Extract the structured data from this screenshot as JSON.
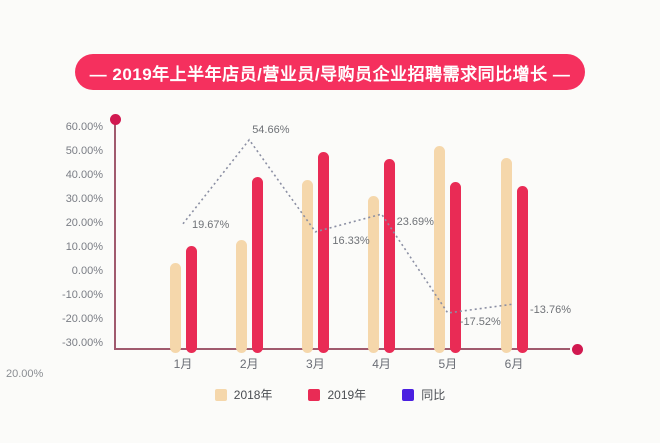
{
  "title": "— 2019年上半年店员/营业员/导购员企业招聘需求同比增长 —",
  "colors": {
    "title_bg": "#f5305e",
    "bar_2018": "#f5d7ab",
    "bar_2019": "#e92b55",
    "yoy_legend": "#4a1fe0",
    "yoy_line": "#8b8fa3",
    "axis_line": "#a05a6e",
    "axis_dot": "#d11950"
  },
  "stray_label": "20.00%",
  "chart_data": {
    "type": "bar",
    "categories": [
      "1月",
      "2月",
      "3月",
      "4月",
      "5月",
      "6月"
    ],
    "y_axis": {
      "ticks": [
        "60.00%",
        "50.00%",
        "40.00%",
        "30.00%",
        "20.00%",
        "10.00%",
        "0.00%",
        "-10.00%",
        "-20.00%",
        "-30.00%"
      ],
      "min": -30,
      "max": 60,
      "grid": false
    },
    "series": [
      {
        "name": "2018年",
        "type": "bar",
        "color": "#f5d7ab",
        "values": [
          3.5,
          13.0,
          37.8,
          31.1,
          52.1,
          47.1
        ],
        "baseline": -30,
        "note": "unlabeled bars; values are tops read on the percent axis, bars drawn up from the x-axis baseline at -30%"
      },
      {
        "name": "2019年",
        "type": "bar",
        "color": "#e92b55",
        "values": [
          10.5,
          39.1,
          49.6,
          46.7,
          37.0,
          35.3
        ],
        "baseline": -30,
        "note": "unlabeled bars; values are tops read on the percent axis, bars drawn up from the x-axis baseline at -30%"
      },
      {
        "name": "同比",
        "type": "line",
        "line_style": "dotted",
        "color": "#8b8fa3",
        "legend_color": "#4a1fe0",
        "values": [
          19.67,
          54.66,
          16.33,
          23.69,
          -17.52,
          -13.76
        ],
        "labels": [
          "19.67%",
          "54.66%",
          "16.33%",
          "23.69%",
          "-17.52%",
          "-13.76%"
        ]
      }
    ],
    "legend": [
      {
        "label": "2018年",
        "color": "#f5d7ab"
      },
      {
        "label": "2019年",
        "color": "#e92b55"
      },
      {
        "label": "同比",
        "color": "#4a1fe0"
      }
    ],
    "legend_position": "bottom",
    "title": "— 2019年上半年店员/营业员/导购员企业招聘需求同比增长 —"
  }
}
